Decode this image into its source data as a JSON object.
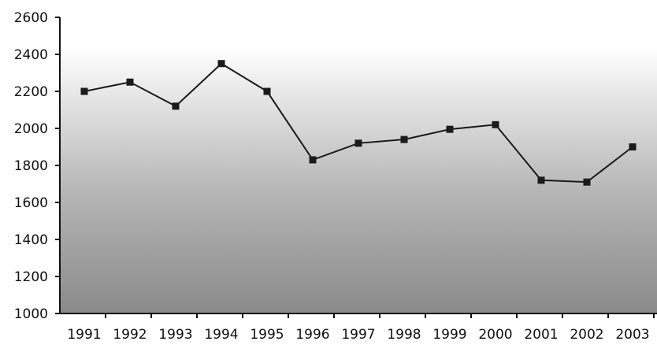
{
  "chart_data": {
    "type": "line",
    "title": "",
    "xlabel": "",
    "ylabel": "",
    "categories": [
      "1991",
      "1992",
      "1993",
      "1994",
      "1995",
      "1996",
      "1997",
      "1998",
      "1999",
      "2000",
      "2001",
      "2002",
      "2003"
    ],
    "series": [
      {
        "values": [
          2200,
          2250,
          2120,
          2350,
          2200,
          1830,
          1920,
          1940,
          1995,
          2020,
          1720,
          1710,
          1900
        ]
      }
    ],
    "ylim": [
      1000,
      2600
    ],
    "yticks": [
      1000,
      1200,
      1400,
      1600,
      1800,
      2000,
      2200,
      2400,
      2600
    ],
    "grid": false,
    "legend": "none",
    "colors": {
      "line": "#1a1a1a",
      "plot_background_top": "#ffffff",
      "plot_background_bottom": "#8a8a8a"
    }
  }
}
